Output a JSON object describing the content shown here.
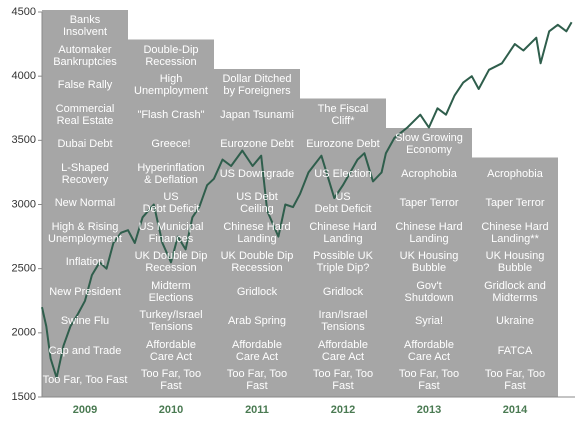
{
  "chart_data": {
    "type": "line",
    "ylim": [
      1500,
      4500
    ],
    "yticks": [
      1500,
      2000,
      2500,
      3000,
      3500,
      4000,
      4500
    ],
    "xlim": [
      2009,
      2015.2
    ],
    "color": "#2f5e4c",
    "box_color": "#a6a6a6",
    "x": [
      2009.0,
      2009.05,
      2009.1,
      2009.17,
      2009.25,
      2009.33,
      2009.42,
      2009.5,
      2009.58,
      2009.67,
      2009.75,
      2009.83,
      2009.92,
      2010.0,
      2010.08,
      2010.17,
      2010.3,
      2010.4,
      2010.5,
      2010.58,
      2010.67,
      2010.75,
      2010.83,
      2010.92,
      2011.0,
      2011.1,
      2011.2,
      2011.33,
      2011.45,
      2011.55,
      2011.62,
      2011.75,
      2011.83,
      2011.92,
      2012.0,
      2012.1,
      2012.25,
      2012.4,
      2012.5,
      2012.67,
      2012.75,
      2012.85,
      2012.95,
      2013.0,
      2013.1,
      2013.25,
      2013.4,
      2013.5,
      2013.6,
      2013.7,
      2013.8,
      2013.9,
      2014.0,
      2014.08,
      2014.2,
      2014.35,
      2014.5,
      2014.6,
      2014.75,
      2014.8,
      2014.9,
      2015.0,
      2015.1,
      2015.16
    ],
    "values": [
      2200,
      2050,
      1800,
      1650,
      1900,
      2050,
      2150,
      2250,
      2450,
      2550,
      2500,
      2700,
      2780,
      2800,
      2700,
      2900,
      3000,
      2700,
      2550,
      2750,
      2650,
      2900,
      2980,
      3150,
      3200,
      3350,
      3300,
      3420,
      3300,
      3380,
      2950,
      2750,
      3000,
      2980,
      3080,
      3250,
      3380,
      3050,
      3150,
      3350,
      3400,
      3180,
      3250,
      3400,
      3520,
      3600,
      3700,
      3600,
      3750,
      3700,
      3850,
      3950,
      4000,
      3900,
      4050,
      4100,
      4250,
      4200,
      4300,
      4100,
      4350,
      4400,
      4350,
      4420
    ],
    "columns": [
      {
        "year": "2009",
        "items": [
          "Too Far, Too Fast",
          "Cap and Trade",
          "Swine Flu",
          "New President",
          "Inflation",
          "High & Rising\nUnemployment",
          "New Normal",
          "L-Shaped\nRecovery",
          "Dubai Debt",
          "Commercial\nReal Estate",
          "False Rally",
          "Automaker\nBankruptcies",
          "Banks\nInsolvent"
        ]
      },
      {
        "year": "2010",
        "items": [
          "Too Far, Too\nFast",
          "Affordable\nCare Act",
          "Turkey/Israel\nTensions",
          "Midterm\nElections",
          "UK Double Dip\nRecession",
          "US Municipal\nFinances",
          "US\nDebt Deficit",
          "Hyperinflation\n& Deflation",
          "Greece!",
          "\"Flash Crash\"",
          "High\nUnemployment",
          "Double-Dip\nRecession"
        ]
      },
      {
        "year": "2011",
        "items": [
          "Too Far, Too\nFast",
          "Affordable\nCare Act",
          "Arab Spring",
          "Gridlock",
          "UK Double Dip\nRecession",
          "Chinese Hard\nLanding",
          "US Debt\nCeiling",
          "US Downgrade",
          "Eurozone Debt",
          "Japan Tsunami",
          "Dollar Ditched\nby Foreigners"
        ]
      },
      {
        "year": "2012",
        "items": [
          "Too Far, Too\nFast",
          "Affordable\nCare Act",
          "Iran/Israel\nTensions",
          "Gridlock",
          "Possible UK\nTriple Dip?",
          "Chinese Hard\nLanding",
          "US\nDebt Deficit",
          "US Election",
          "Eurozone Debt",
          "The Fiscal\nCliff*"
        ]
      },
      {
        "year": "2013",
        "items": [
          "Too Far, Too\nFast",
          "Affordable\nCare Act",
          "Syria!",
          "Gov't\nShutdown",
          "UK Housing\nBubble",
          "Chinese Hard\nLanding",
          "Taper Terror",
          "Acrophobia",
          "Slow Growing\nEconomy"
        ]
      },
      {
        "year": "2014",
        "items": [
          "Too Far, Too\nFast",
          "FATCA",
          "Ukraine",
          "Gridlock and\nMidterms",
          "UK Housing\nBubble",
          "Chinese Hard\nLanding**",
          "Taper Terror",
          "Acrophobia"
        ]
      }
    ]
  }
}
